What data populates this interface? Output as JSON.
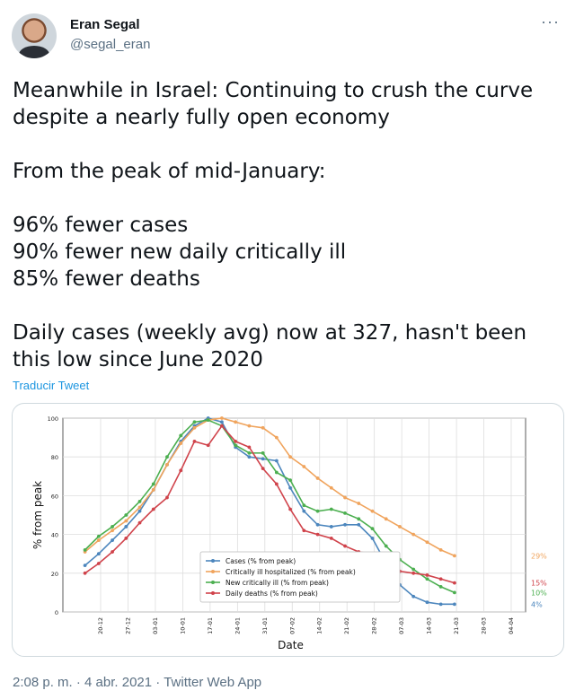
{
  "author": {
    "display_name": "Eran Segal",
    "handle": "@segal_eran",
    "avatar_icon": "profile-photo",
    "more_icon": "more-options-icon",
    "more_label": "···"
  },
  "tweet": {
    "text": "Meanwhile in Israel: Continuing to crush the curve despite a nearly fully open economy\n\nFrom the peak of mid-January:\n\n96% fewer cases\n90% fewer new daily critically ill\n85% fewer deaths\n\nDaily cases (weekly avg) now at 327, hasn't been this low since June 2020",
    "translate_label": "Traducir Tweet"
  },
  "footer": {
    "time": "2:08 p. m.",
    "separator": " · ",
    "date": "4 abr. 2021",
    "app": "Twitter Web App"
  },
  "colors": {
    "link": "#1b95e0",
    "muted": "#5b7083"
  },
  "chart_data": {
    "type": "line",
    "xlabel": "Date",
    "ylabel": "% from peak",
    "ylim": [
      0,
      100
    ],
    "yticks": [
      0,
      20,
      40,
      60,
      80,
      100
    ],
    "xticks": [
      "20-12",
      "27-12",
      "03-01",
      "10-01",
      "17-01",
      "24-01",
      "31-01",
      "07-02",
      "14-02",
      "21-02",
      "28-02",
      "07-03",
      "14-03",
      "21-03",
      "28-03",
      "04-04"
    ],
    "grid": true,
    "legend_position": "bottom-center",
    "x_day_index_note_for_series": "each series is sampled every 3.5 days from 2020-12-16 to 2021-04-04",
    "series": [
      {
        "name": "Cases (% from peak)",
        "color": "#4c86bd",
        "end_label": "4%",
        "values": [
          24,
          30,
          37,
          44,
          52,
          63,
          76,
          88,
          96,
          100,
          98,
          85,
          80,
          79,
          78,
          64,
          52,
          45,
          44,
          45,
          45,
          38,
          25,
          14,
          8,
          5,
          4,
          4
        ]
      },
      {
        "name": "Critically ill hospitalized (% from peak)",
        "color": "#f0a45d",
        "end_label": "29%",
        "values": [
          31,
          37,
          42,
          47,
          54,
          63,
          76,
          87,
          95,
          99,
          100,
          98,
          96,
          95,
          90,
          80,
          75,
          69,
          64,
          59,
          56,
          52,
          48,
          44,
          40,
          36,
          32,
          29
        ]
      },
      {
        "name": "New critically ill (% from peak)",
        "color": "#4caf50",
        "end_label": "10%",
        "values": [
          32,
          39,
          44,
          50,
          57,
          66,
          80,
          91,
          98,
          99,
          96,
          86,
          82,
          82,
          72,
          68,
          55,
          52,
          53,
          51,
          48,
          43,
          34,
          27,
          22,
          17,
          13,
          10
        ]
      },
      {
        "name": "Daily deaths (% from peak)",
        "color": "#d0434b",
        "end_label": "15%",
        "values": [
          20,
          25,
          31,
          38,
          46,
          53,
          59,
          73,
          88,
          86,
          96,
          88,
          85,
          74,
          66,
          53,
          42,
          40,
          38,
          34,
          31,
          30,
          25,
          21,
          20,
          19,
          17,
          15
        ]
      }
    ]
  }
}
